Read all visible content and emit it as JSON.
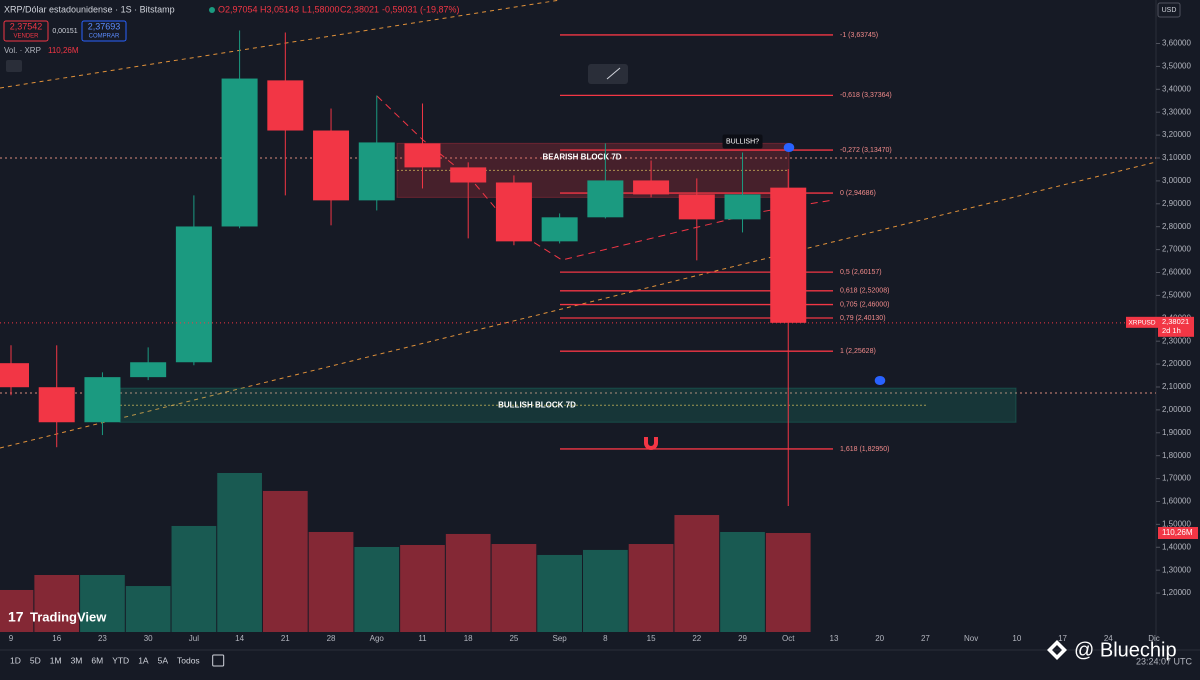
{
  "header": {
    "title": "XRP/Dólar estadounidense · 1S · Bitstamp",
    "open": "O2,97054",
    "high": "H3,05143",
    "low": "L1,58000",
    "close": "C2,38021",
    "change": "-0,59031 (-19,87%)",
    "sell_price": "2,37542",
    "sell": "VENDER",
    "spread": "0,00151",
    "buy_price": "2,37693",
    "buy": "COMPRAR",
    "volume_label": "Vol. · XRP",
    "volume_value": "110,26M",
    "currency": "USD"
  },
  "chart_data": {
    "type": "candlestick",
    "categories": [
      "9",
      "16",
      "23",
      "30",
      "Jul",
      "14",
      "21",
      "28",
      "Ago",
      "11",
      "18",
      "25",
      "Sep",
      "8",
      "15",
      "22",
      "29",
      "Oct",
      "13",
      "20",
      "27",
      "Nov",
      "10",
      "17",
      "24",
      "Dic"
    ],
    "open": [
      2.204,
      2.099,
      1.946,
      2.143,
      2.208,
      2.801,
      3.439,
      3.22,
      2.915,
      3.164,
      3.059,
      2.993,
      2.736,
      2.841,
      3.002,
      2.941,
      2.832,
      2.97054,
      null,
      null,
      null,
      null,
      null,
      null,
      null,
      null
    ],
    "high": [
      2.282,
      2.282,
      2.164,
      2.273,
      2.937,
      3.657,
      3.648,
      3.316,
      3.373,
      3.338,
      3.081,
      3.024,
      2.858,
      3.164,
      3.089,
      3.011,
      3.124,
      3.05143,
      null,
      null,
      null,
      null,
      null,
      null,
      null,
      null
    ],
    "low": [
      2.064,
      1.837,
      1.89,
      2.13,
      2.195,
      2.793,
      2.937,
      2.806,
      2.871,
      2.967,
      2.749,
      2.719,
      2.727,
      2.836,
      2.928,
      2.653,
      2.775,
      1.58,
      null,
      null,
      null,
      null,
      null,
      null,
      null,
      null
    ],
    "close": [
      2.099,
      1.946,
      2.143,
      2.208,
      2.801,
      3.447,
      3.22,
      2.915,
      3.168,
      3.059,
      2.993,
      2.736,
      2.841,
      3.002,
      2.941,
      2.832,
      2.941,
      2.38021,
      null,
      null,
      null,
      null,
      null,
      null,
      null,
      null
    ],
    "volume": [
      46.8,
      63.5,
      63.5,
      51.2,
      118.1,
      177.1,
      157.1,
      111.4,
      94.7,
      96.9,
      109.2,
      98,
      85.8,
      91.4,
      98,
      130.3,
      111.4,
      110.26,
      null,
      null,
      null,
      null,
      null,
      null,
      null,
      null
    ],
    "volume_last_label": "110,26M",
    "up_color": "#1b9a80",
    "down_color": "#f23645",
    "ylim": [
      1.03,
      3.79
    ],
    "yticks": [
      {
        "value": 1.2,
        "label": "1,20000"
      },
      {
        "value": 1.3,
        "label": "1,30000"
      },
      {
        "value": 1.4,
        "label": "1,40000"
      },
      {
        "value": 1.5,
        "label": "1,50000"
      },
      {
        "value": 1.6,
        "label": "1,60000"
      },
      {
        "value": 1.7,
        "label": "1,70000"
      },
      {
        "value": 1.8,
        "label": "1,80000"
      },
      {
        "value": 1.9,
        "label": "1,90000"
      },
      {
        "value": 2.0,
        "label": "2,00000"
      },
      {
        "value": 2.1,
        "label": "2,10000"
      },
      {
        "value": 2.2,
        "label": "2,20000"
      },
      {
        "value": 2.3,
        "label": "2,30000"
      },
      {
        "value": 2.4,
        "label": "2,40000"
      },
      {
        "value": 2.5,
        "label": "2,50000"
      },
      {
        "value": 2.6,
        "label": "2,60000"
      },
      {
        "value": 2.7,
        "label": "2,70000"
      },
      {
        "value": 2.8,
        "label": "2,80000"
      },
      {
        "value": 2.9,
        "label": "2,90000"
      },
      {
        "value": 3.0,
        "label": "3,00000"
      },
      {
        "value": 3.1,
        "label": "3,10000"
      },
      {
        "value": 3.2,
        "label": "3,20000"
      },
      {
        "value": 3.3,
        "label": "3,30000"
      },
      {
        "value": 3.4,
        "label": "3,40000"
      },
      {
        "value": 3.5,
        "label": "3,50000"
      },
      {
        "value": 3.6,
        "label": "3,60000"
      }
    ],
    "fib_levels": [
      {
        "value": 3.63745,
        "label": "-1 (3,63745)"
      },
      {
        "value": 3.37364,
        "label": "-0,618 (3,37364)"
      },
      {
        "value": 3.1347,
        "label": "-0,272 (3,13470)"
      },
      {
        "value": 2.94686,
        "label": "0 (2,94686)"
      },
      {
        "value": 2.60157,
        "label": "0,5 (2,60157)"
      },
      {
        "value": 2.52008,
        "label": "0,618 (2,52008)"
      },
      {
        "value": 2.46,
        "label": "0,705 (2,46000)"
      },
      {
        "value": 2.4013,
        "label": "0,79 (2,40130)"
      },
      {
        "value": 2.25628,
        "label": "1 (2,25628)"
      },
      {
        "value": 1.8295,
        "label": "1,618 (1,82950)"
      }
    ],
    "zones": [
      {
        "label": "BEARISH BLOCK 7D",
        "top": 3.164,
        "bottom": 2.928,
        "color": "#f23645"
      },
      {
        "label": "BULLISH BLOCK 7D",
        "top": 2.095,
        "bottom": 1.946,
        "color": "#1b9a80"
      }
    ],
    "annotation": "BULLISH?",
    "price_tag": {
      "symbol": "XRPUSD",
      "value": 2.38021,
      "label": "2,38021",
      "countdown": "2d 1h"
    }
  },
  "toolbar": {
    "ranges": [
      "1D",
      "5D",
      "1M",
      "3M",
      "6M",
      "YTD",
      "1A",
      "5A",
      "Todos"
    ],
    "time": "23:24:07 UTC"
  },
  "logo": "TradingView",
  "watermark": "@ Bluechip"
}
